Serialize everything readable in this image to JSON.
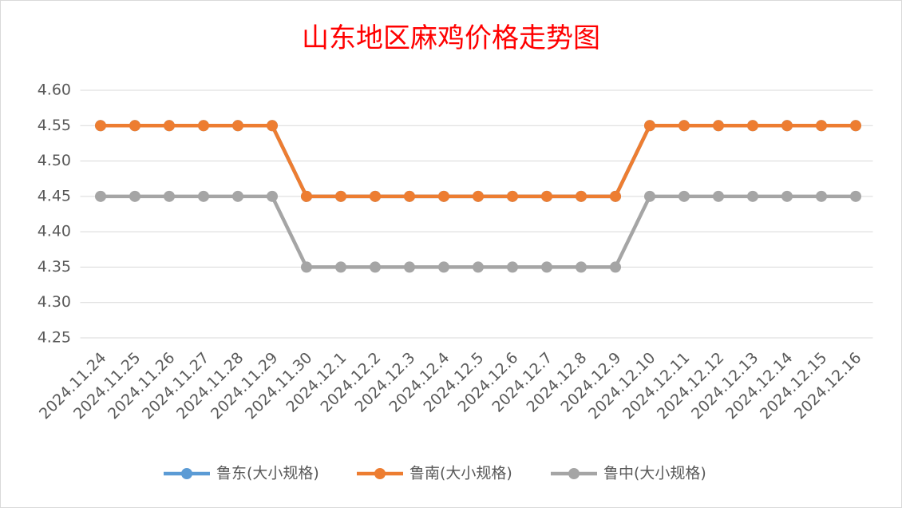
{
  "chart_data": {
    "type": "line",
    "title": "山东地区麻鸡价格走势图",
    "categories": [
      "2024.11.24",
      "2024.11.25",
      "2024.11.26",
      "2024.11.27",
      "2024.11.28",
      "2024.11.29",
      "2024.11.30",
      "2024.12.1",
      "2024.12.2",
      "2024.12.3",
      "2024.12.4",
      "2024.12.5",
      "2024.12.6",
      "2024.12.7",
      "2024.12.8",
      "2024.12.9",
      "2024.12.10",
      "2024.12.11",
      "2024.12.12",
      "2024.12.13",
      "2024.12.14",
      "2024.12.15",
      "2024.12.16"
    ],
    "series": [
      {
        "name": "鲁东(大小规格)",
        "color": "#5b9bd5",
        "values": [
          4.55,
          4.55,
          4.55,
          4.55,
          4.55,
          4.55,
          4.45,
          4.45,
          4.45,
          4.45,
          4.45,
          4.45,
          4.45,
          4.45,
          4.45,
          4.45,
          4.55,
          4.55,
          4.55,
          4.55,
          4.55,
          4.55,
          4.55
        ]
      },
      {
        "name": "鲁南(大小规格)",
        "color": "#ed7d31",
        "values": [
          4.55,
          4.55,
          4.55,
          4.55,
          4.55,
          4.55,
          4.45,
          4.45,
          4.45,
          4.45,
          4.45,
          4.45,
          4.45,
          4.45,
          4.45,
          4.45,
          4.55,
          4.55,
          4.55,
          4.55,
          4.55,
          4.55,
          4.55
        ]
      },
      {
        "name": "鲁中(大小规格)",
        "color": "#a5a5a5",
        "values": [
          4.45,
          4.45,
          4.45,
          4.45,
          4.45,
          4.45,
          4.35,
          4.35,
          4.35,
          4.35,
          4.35,
          4.35,
          4.35,
          4.35,
          4.35,
          4.35,
          4.45,
          4.45,
          4.45,
          4.45,
          4.45,
          4.45,
          4.45
        ]
      }
    ],
    "ylim": [
      4.25,
      4.6
    ],
    "yticks": [
      4.25,
      {
        "value": 4.3,
        "label": "4.30"
      },
      4.35,
      {
        "value": 4.4,
        "label": "4.40"
      },
      4.45,
      {
        "value": 4.5,
        "label": "4.50"
      },
      4.55,
      {
        "value": 4.6,
        "label": "4.60"
      }
    ],
    "grid": true,
    "legend": "bottom"
  }
}
